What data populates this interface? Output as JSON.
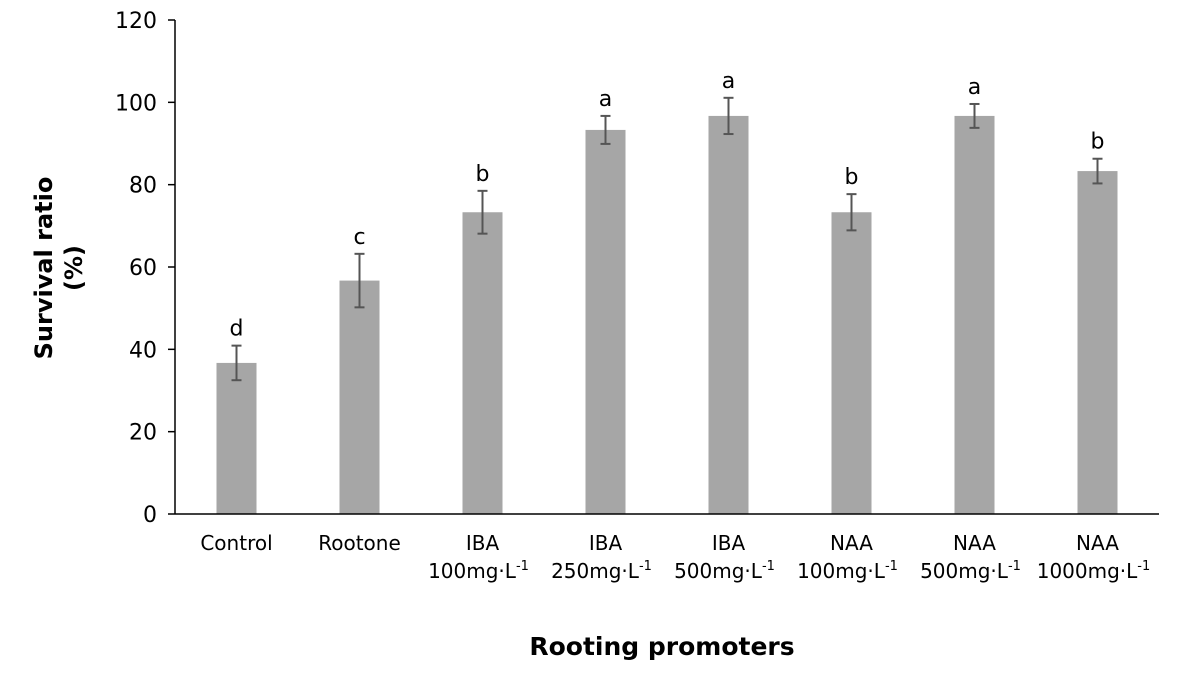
{
  "chart_data": {
    "type": "bar",
    "title": "",
    "xlabel": "Rooting promoters",
    "ylabel_lines": [
      "Survival ratio",
      "(%)"
    ],
    "ylim": [
      0,
      120
    ],
    "yticks": [
      0,
      20,
      40,
      60,
      80,
      100,
      120
    ],
    "grid": false,
    "bar_color": "#a6a6a6",
    "error_color": "#555555",
    "categories": [
      {
        "line1": "Control",
        "line2": "",
        "unit": ""
      },
      {
        "line1": "Rootone",
        "line2": "",
        "unit": ""
      },
      {
        "line1": "IBA",
        "line2": "100mg·L",
        "unit": "-1"
      },
      {
        "line1": "IBA",
        "line2": "250mg·L",
        "unit": "-1"
      },
      {
        "line1": "IBA",
        "line2": "500mg·L",
        "unit": "-1"
      },
      {
        "line1": "NAA",
        "line2": "100mg·L",
        "unit": "-1"
      },
      {
        "line1": "NAA",
        "line2": "500mg·L",
        "unit": "-1"
      },
      {
        "line1": "NAA",
        "line2": "1000mg·L",
        "unit": "-1"
      }
    ],
    "values": [
      36.7,
      56.7,
      73.3,
      93.3,
      96.7,
      73.3,
      96.7,
      83.3
    ],
    "errors": [
      4.2,
      6.5,
      5.2,
      3.4,
      4.4,
      4.4,
      2.9,
      3.0
    ],
    "letters": [
      "d",
      "c",
      "b",
      "a",
      "a",
      "b",
      "a",
      "b"
    ]
  }
}
